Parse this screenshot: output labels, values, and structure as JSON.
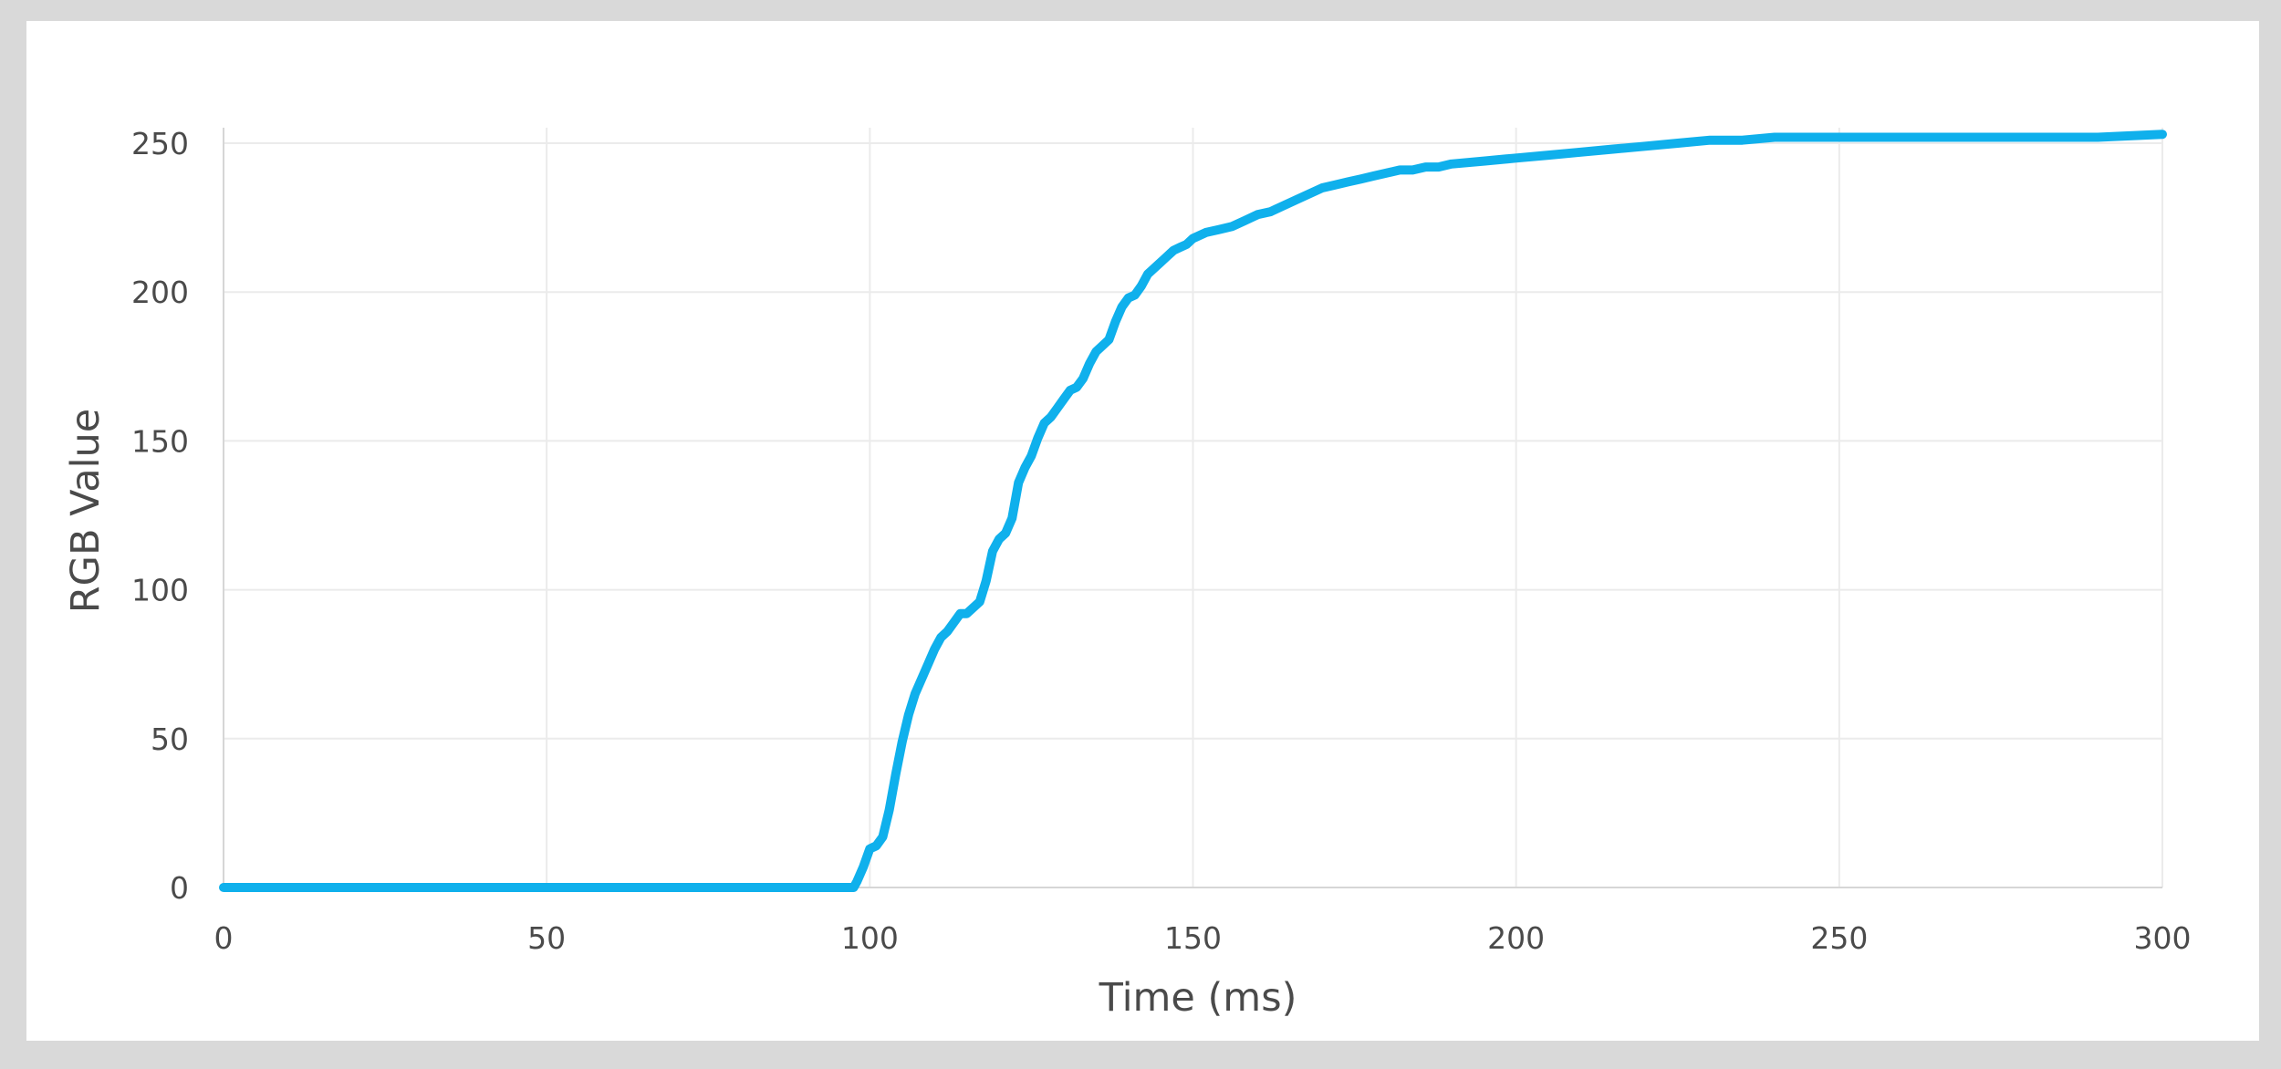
{
  "chart_data": {
    "type": "line",
    "xlabel": "Time (ms)",
    "ylabel": "RGB Value",
    "xlim": [
      0,
      300
    ],
    "ylim": [
      0,
      250
    ],
    "x_ticks": [
      0,
      50,
      100,
      150,
      200,
      250,
      300
    ],
    "y_ticks": [
      0,
      50,
      100,
      150,
      200,
      250
    ],
    "grid": true,
    "line_color": "#0fb0ec",
    "grid_color": "#ebebeb",
    "series": [
      {
        "x": [
          0,
          95,
          97.5,
          98,
          99,
          100,
          101,
          102,
          103,
          104,
          105,
          106,
          107,
          108,
          109,
          110,
          111,
          112,
          113,
          114,
          115,
          116,
          117,
          118,
          119,
          120,
          121,
          122,
          123,
          124,
          125,
          126,
          127,
          128,
          129,
          130,
          131,
          132,
          133,
          134,
          135,
          136,
          137,
          138,
          139,
          140,
          141,
          142,
          143,
          144,
          145,
          146,
          147,
          148,
          149,
          150,
          152,
          154,
          156,
          158,
          160,
          162,
          164,
          166,
          168,
          170,
          172,
          174,
          176,
          178,
          180,
          182,
          184,
          186,
          188,
          190,
          195,
          200,
          205,
          210,
          215,
          220,
          225,
          230,
          235,
          240,
          250,
          260,
          270,
          280,
          290,
          300
        ],
        "y": [
          0,
          0,
          0,
          2,
          7,
          13,
          14,
          17,
          26,
          38,
          49,
          58,
          65,
          70,
          75,
          80,
          84,
          86,
          89,
          92,
          92,
          94,
          96,
          103,
          113,
          117,
          119,
          124,
          136,
          141,
          145,
          151,
          156,
          158,
          161,
          164,
          167,
          168,
          171,
          176,
          180,
          182,
          184,
          190,
          195,
          198,
          199,
          202,
          206,
          208,
          210,
          212,
          214,
          215,
          216,
          218,
          220,
          221,
          222,
          224,
          226,
          227,
          229,
          231,
          233,
          235,
          236,
          237,
          238,
          239,
          240,
          241,
          241,
          242,
          242,
          243,
          244,
          245,
          246,
          247,
          248,
          249,
          250,
          251,
          251,
          252,
          252,
          252,
          252,
          252,
          252,
          253
        ]
      }
    ]
  }
}
